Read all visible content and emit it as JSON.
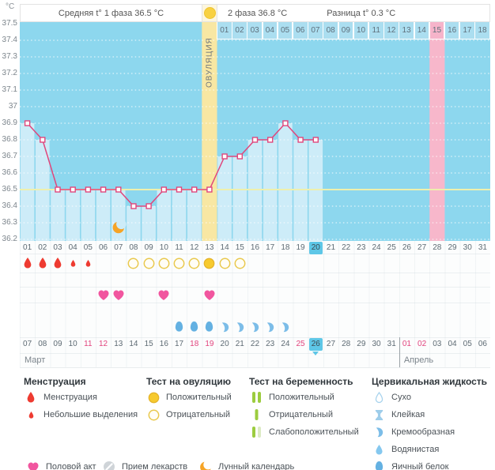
{
  "header": {
    "unit_label": "°C",
    "phase1_label": "Средняя t° 1 фаза 36.5 °C",
    "phase2_label": "2 фаза 36.8 °C",
    "diff_label": "Разница t° 0.3 °C",
    "ovulation_label": "ОВУЛЯЦИЯ"
  },
  "chart_data": {
    "type": "line",
    "ylabel": "°C",
    "ylim": [
      36.2,
      37.5
    ],
    "ytick_step": 0.1,
    "yticks": [
      "37.5",
      "37.4",
      "37.3",
      "37.2",
      "37.1",
      "37",
      "36.9",
      "36.8",
      "36.7",
      "36.6",
      "36.5",
      "36.4",
      "36.3",
      "36.2"
    ],
    "cycle_days": [
      "01",
      "02",
      "03",
      "04",
      "05",
      "06",
      "07",
      "08",
      "09",
      "10",
      "11",
      "12",
      "13",
      "14",
      "15",
      "16",
      "17",
      "18",
      "19",
      "20",
      "21",
      "22",
      "23",
      "24",
      "25",
      "26",
      "27",
      "28",
      "29",
      "30",
      "31"
    ],
    "temperatures": [
      36.9,
      36.8,
      36.5,
      36.5,
      36.5,
      36.5,
      36.5,
      36.4,
      36.4,
      36.5,
      36.5,
      36.5,
      36.5,
      36.7,
      36.7,
      36.8,
      36.8,
      36.9,
      36.8,
      36.8,
      null,
      null,
      null,
      null,
      null,
      null,
      null,
      null,
      null,
      null,
      null
    ],
    "coverline": 36.5,
    "phase1_average": 36.5,
    "phase2_average": 36.8,
    "temperature_difference": 0.3,
    "ovulation_day": 13,
    "current_cycle_day": 20,
    "expected_period_day": 28,
    "moon_calendar_day": 7,
    "dpo_labels": [
      "01",
      "02",
      "03",
      "04",
      "05",
      "06",
      "07",
      "08",
      "09",
      "10",
      "11",
      "12",
      "13",
      "14",
      "15",
      "16",
      "17",
      "18"
    ],
    "dpo_highlighted": "15"
  },
  "events": {
    "menstruation": [
      {
        "day": 1,
        "intensity": "heavy"
      },
      {
        "day": 2,
        "intensity": "heavy"
      },
      {
        "day": 3,
        "intensity": "heavy"
      },
      {
        "day": 4,
        "intensity": "light"
      },
      {
        "day": 5,
        "intensity": "light"
      }
    ],
    "ovulation_tests": [
      {
        "day": 8,
        "result": "negative"
      },
      {
        "day": 9,
        "result": "negative"
      },
      {
        "day": 10,
        "result": "negative"
      },
      {
        "day": 11,
        "result": "negative"
      },
      {
        "day": 12,
        "result": "negative"
      },
      {
        "day": 13,
        "result": "positive"
      },
      {
        "day": 14,
        "result": "negative"
      },
      {
        "day": 15,
        "result": "negative"
      }
    ],
    "intercourse_days": [
      6,
      7,
      10,
      13
    ],
    "cervical_fluid": [
      {
        "day": 11,
        "type": "eggwhite"
      },
      {
        "day": 12,
        "type": "eggwhite"
      },
      {
        "day": 13,
        "type": "eggwhite"
      },
      {
        "day": 14,
        "type": "creamy"
      },
      {
        "day": 15,
        "type": "creamy"
      },
      {
        "day": 16,
        "type": "creamy"
      },
      {
        "day": 17,
        "type": "creamy"
      },
      {
        "day": 18,
        "type": "creamy"
      }
    ]
  },
  "calendar": {
    "dates": [
      "07",
      "08",
      "09",
      "10",
      "11",
      "12",
      "13",
      "14",
      "15",
      "16",
      "17",
      "18",
      "19",
      "20",
      "21",
      "22",
      "23",
      "24",
      "25",
      "26",
      "27",
      "28",
      "29",
      "30",
      "31",
      "01",
      "02",
      "03",
      "04",
      "05",
      "06"
    ],
    "weekend_indices": [
      4,
      5,
      11,
      12,
      18,
      19,
      25,
      26
    ],
    "today_index": 19,
    "months": [
      {
        "label": "Март",
        "start_col": 1
      },
      {
        "label": "Апрель",
        "start_col": 26
      }
    ]
  },
  "legend": {
    "sections": [
      {
        "title": "Менструация",
        "items": [
          {
            "icon": "drop-large",
            "label": "Менструация"
          },
          {
            "icon": "drop-small",
            "label": "Небольшие выделения"
          }
        ]
      },
      {
        "title": "Тест на овуляцию",
        "items": [
          {
            "icon": "circle-pos",
            "label": "Положительный"
          },
          {
            "icon": "circle-neg",
            "label": "Отрицательный"
          }
        ]
      },
      {
        "title": "Тест на беременность",
        "items": [
          {
            "icon": "bars-pos",
            "label": "Положительный"
          },
          {
            "icon": "bar-neg",
            "label": "Отрицательный"
          },
          {
            "icon": "bars-weak",
            "label": "Слабоположительный"
          }
        ]
      },
      {
        "title": "Цервикальная жидкость",
        "items": [
          {
            "icon": "cf-dry",
            "label": "Сухо"
          },
          {
            "icon": "cf-sticky",
            "label": "Клейкая"
          },
          {
            "icon": "cf-creamy",
            "label": "Кремообразная"
          },
          {
            "icon": "cf-watery",
            "label": "Водянистая"
          },
          {
            "icon": "cf-eggwhite",
            "label": "Яичный белок"
          }
        ]
      }
    ],
    "extras": [
      {
        "icon": "heart",
        "label": "Половой акт"
      },
      {
        "icon": "pill",
        "label": "Прием лекарств"
      },
      {
        "icon": "moon",
        "label": "Лунный календарь"
      }
    ]
  },
  "colors": {
    "plot_bg": "#8dd7ee",
    "fill": "#cdecf8",
    "ovulation_band": "#f8e7a3",
    "period_band": "#f7b7cb",
    "temp_line": "#e0467c",
    "coverline": "#eef0ad",
    "highlight": "#5ec7e7",
    "weekend": "#e2447e",
    "menstruation_red": "#ee3b31",
    "test_yellow": "#f7ca2e",
    "heart_pink": "#f1569f",
    "cervical_blue": "#74b9e6",
    "pregnancy_green": "#9ccc3f",
    "moon_orange": "#f6a426"
  }
}
